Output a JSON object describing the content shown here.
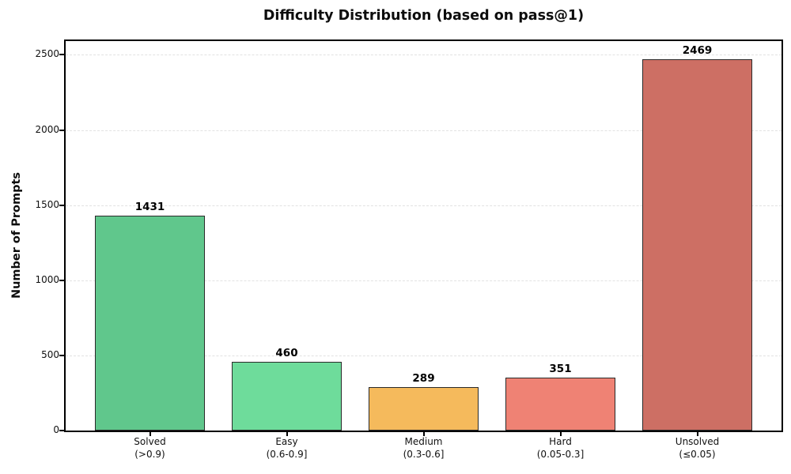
{
  "chart_data": {
    "type": "bar",
    "title": "Difficulty Distribution (based on pass@1)",
    "ylabel": "Number of Prompts",
    "xlabel": "",
    "categories": [
      "Solved\n(>0.9)",
      "Easy\n(0.6-0.9]",
      "Medium\n(0.3-0.6]",
      "Hard\n(0.05-0.3]",
      "Unsolved\n(≤0.05)"
    ],
    "values": [
      1431,
      460,
      289,
      351,
      2469
    ],
    "value_labels": [
      "1431",
      "460",
      "289",
      "351",
      "2469"
    ],
    "bar_colors": [
      "#60c78c",
      "#6edc9b",
      "#f5ba5c",
      "#ef8274",
      "#cd6f64"
    ],
    "bar_edge_color": "#2a2a2a",
    "ylim": [
      0,
      2592
    ],
    "yticks": [
      0,
      500,
      1000,
      1500,
      2000,
      2500
    ],
    "grid": "horizontal-dashed",
    "legend": "none"
  }
}
